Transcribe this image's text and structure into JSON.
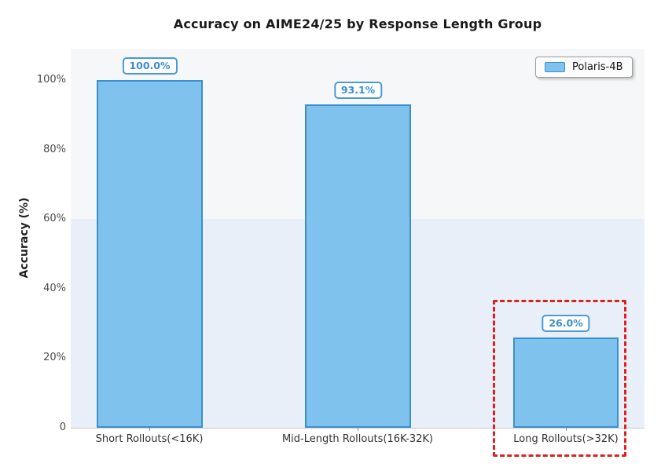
{
  "title": "Accuracy on AIME24/25 by Response Length Group",
  "y_axis_label": "Accuracy (%)",
  "yticks": [
    "100%",
    "80%",
    "60%",
    "40%",
    "20%",
    "0"
  ],
  "legend": {
    "label": "Polaris-4B"
  },
  "value_labels": [
    "100.0%",
    "93.1%",
    "26.0%"
  ],
  "chart_data": {
    "type": "bar",
    "title": "Accuracy on AIME24/25 by Response Length Group",
    "xlabel": "",
    "ylabel": "Accuracy (%)",
    "categories": [
      "Short Rollouts(<16K)",
      "Mid-Length Rollouts(16K-32K)",
      "Long Rollouts(>32K)"
    ],
    "series": [
      {
        "name": "Polaris-4B",
        "values": [
          100.0,
          93.1,
          26.0
        ]
      }
    ],
    "values": [
      100.0,
      93.1,
      26.0
    ],
    "value_label_format": "percent_one_decimal",
    "ylim": [
      0,
      109
    ],
    "ytick_values": [
      0,
      20,
      40,
      60,
      80,
      100
    ],
    "grid": false,
    "legend_position": "upper right",
    "annotations": [
      {
        "type": "highlight_box",
        "target_category": "Long Rollouts(>32K)",
        "style": "dashed",
        "color": "#e02020"
      },
      {
        "type": "background_band",
        "from": 0,
        "to": 60,
        "color": "#e9eff8"
      }
    ],
    "colors": {
      "bar_fill": "#7fc2ee",
      "bar_edge": "#3b8fcf",
      "value_label_text": "#3a8ecd",
      "highlight_red": "#e02020",
      "plot_background": "#f6f7f8",
      "band_background": "#e9eff8"
    }
  }
}
